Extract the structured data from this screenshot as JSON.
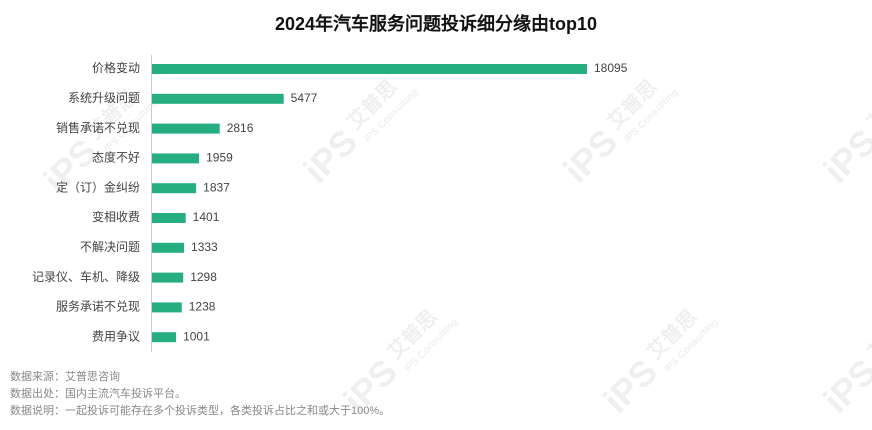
{
  "chart_data": {
    "type": "bar",
    "orientation": "horizontal",
    "title": "2024年汽车服务问题投诉细分缘由top10",
    "categories": [
      "价格变动",
      "系统升级问题",
      "销售承诺不兑现",
      "态度不好",
      "定（订）金纠纷",
      "变相收费",
      "不解决问题",
      "记录仪、车机、降级",
      "服务承诺不兑现",
      "费用争议"
    ],
    "values": [
      18095,
      5477,
      2816,
      1959,
      1837,
      1401,
      1333,
      1298,
      1238,
      1001
    ],
    "color": "#27ae80",
    "notes": [
      "数据来源：艾普思咨询",
      "数据出处：国内主流汽车投诉平台。",
      "数据说明：一起投诉可能存在多个投诉类型，各类投诉占比之和或大于100%。"
    ],
    "watermark": {
      "logo": "iPS",
      "name": "艾普思",
      "sub": "IPS Consulting"
    }
  }
}
